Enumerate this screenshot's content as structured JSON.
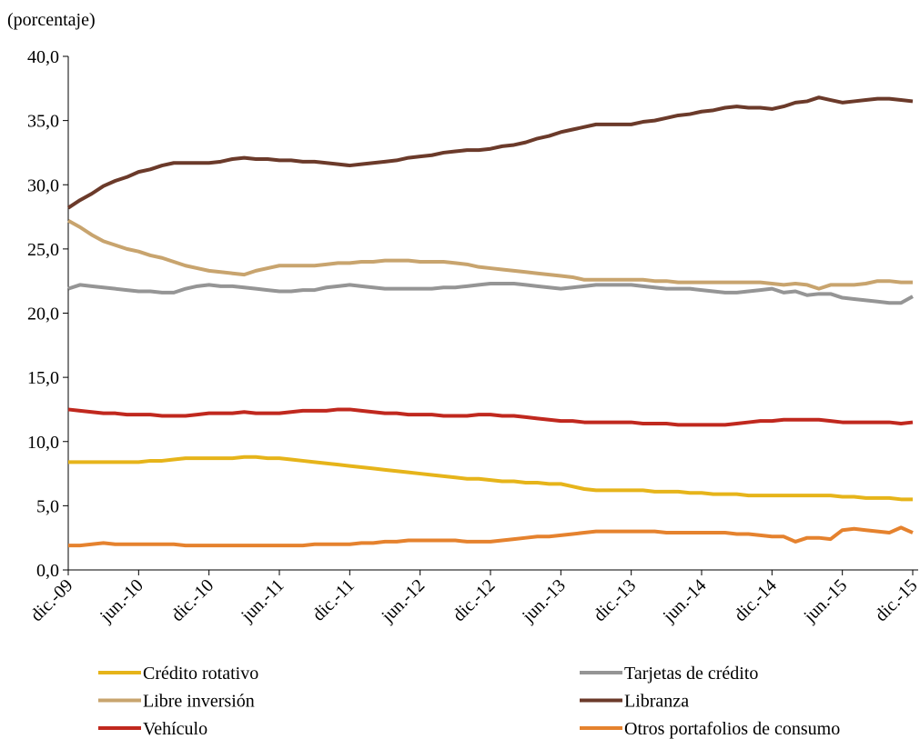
{
  "chart_data": {
    "type": "line",
    "y_label": "(porcentaje)",
    "categories": [
      "dic.-09",
      null,
      null,
      null,
      null,
      null,
      "jun.-10",
      null,
      null,
      null,
      null,
      null,
      "dic.-10",
      null,
      null,
      null,
      null,
      null,
      "jun.-11",
      null,
      null,
      null,
      null,
      null,
      "dic.-11",
      null,
      null,
      null,
      null,
      null,
      "jun.-12",
      null,
      null,
      null,
      null,
      null,
      "dic.-12",
      null,
      null,
      null,
      null,
      null,
      "jun.-13",
      null,
      null,
      null,
      null,
      null,
      "dic.-13",
      null,
      null,
      null,
      null,
      null,
      "jun.-14",
      null,
      null,
      null,
      null,
      null,
      "dic.-14",
      null,
      null,
      null,
      null,
      null,
      "jun.-15",
      null,
      null,
      null,
      null,
      null,
      "dic.-15"
    ],
    "ylim": [
      0,
      40
    ],
    "yticks": [
      {
        "value": 0,
        "label": "0,0"
      },
      {
        "value": 5,
        "label": "5,0"
      },
      {
        "value": 10,
        "label": "10,0"
      },
      {
        "value": 15,
        "label": "15,0"
      },
      {
        "value": 20,
        "label": "20,0"
      },
      {
        "value": 25,
        "label": "25,0"
      },
      {
        "value": 30,
        "label": "30,0"
      },
      {
        "value": 35,
        "label": "35,0"
      },
      {
        "value": 40,
        "label": "40,0"
      }
    ],
    "series": [
      {
        "name": "Crédito rotativo",
        "color": "#e6b41a",
        "values": [
          8.4,
          8.4,
          8.4,
          8.4,
          8.4,
          8.4,
          8.4,
          8.5,
          8.5,
          8.6,
          8.7,
          8.7,
          8.7,
          8.7,
          8.7,
          8.8,
          8.8,
          8.7,
          8.7,
          8.6,
          8.5,
          8.4,
          8.3,
          8.2,
          8.1,
          8.0,
          7.9,
          7.8,
          7.7,
          7.6,
          7.5,
          7.4,
          7.3,
          7.2,
          7.1,
          7.1,
          7.0,
          6.9,
          6.9,
          6.8,
          6.8,
          6.7,
          6.7,
          6.5,
          6.3,
          6.2,
          6.2,
          6.2,
          6.2,
          6.2,
          6.1,
          6.1,
          6.1,
          6.0,
          6.0,
          5.9,
          5.9,
          5.9,
          5.8,
          5.8,
          5.8,
          5.8,
          5.8,
          5.8,
          5.8,
          5.8,
          5.7,
          5.7,
          5.6,
          5.6,
          5.6,
          5.5,
          5.5
        ]
      },
      {
        "name": "Tarjetas de crédito",
        "color": "#959595",
        "values": [
          21.9,
          22.2,
          22.1,
          22.0,
          21.9,
          21.8,
          21.7,
          21.7,
          21.6,
          21.6,
          21.9,
          22.1,
          22.2,
          22.1,
          22.1,
          22.0,
          21.9,
          21.8,
          21.7,
          21.7,
          21.8,
          21.8,
          22.0,
          22.1,
          22.2,
          22.1,
          22.0,
          21.9,
          21.9,
          21.9,
          21.9,
          21.9,
          22.0,
          22.0,
          22.1,
          22.2,
          22.3,
          22.3,
          22.3,
          22.2,
          22.1,
          22.0,
          21.9,
          22.0,
          22.1,
          22.2,
          22.2,
          22.2,
          22.2,
          22.1,
          22.0,
          21.9,
          21.9,
          21.9,
          21.8,
          21.7,
          21.6,
          21.6,
          21.7,
          21.8,
          21.9,
          21.6,
          21.7,
          21.4,
          21.5,
          21.5,
          21.2,
          21.1,
          21.0,
          20.9,
          20.8,
          20.8,
          21.3
        ]
      },
      {
        "name": "Libre inversión",
        "color": "#c8a46e",
        "values": [
          27.2,
          26.7,
          26.1,
          25.6,
          25.3,
          25.0,
          24.8,
          24.5,
          24.3,
          24.0,
          23.7,
          23.5,
          23.3,
          23.2,
          23.1,
          23.0,
          23.3,
          23.5,
          23.7,
          23.7,
          23.7,
          23.7,
          23.8,
          23.9,
          23.9,
          24.0,
          24.0,
          24.1,
          24.1,
          24.1,
          24.0,
          24.0,
          24.0,
          23.9,
          23.8,
          23.6,
          23.5,
          23.4,
          23.3,
          23.2,
          23.1,
          23.0,
          22.9,
          22.8,
          22.6,
          22.6,
          22.6,
          22.6,
          22.6,
          22.6,
          22.5,
          22.5,
          22.4,
          22.4,
          22.4,
          22.4,
          22.4,
          22.4,
          22.4,
          22.4,
          22.3,
          22.2,
          22.3,
          22.2,
          21.9,
          22.2,
          22.2,
          22.2,
          22.3,
          22.5,
          22.5,
          22.4,
          22.4
        ]
      },
      {
        "name": "Libranza",
        "color": "#6b3a2a",
        "values": [
          28.2,
          28.8,
          29.3,
          29.9,
          30.3,
          30.6,
          31.0,
          31.2,
          31.5,
          31.7,
          31.7,
          31.7,
          31.7,
          31.8,
          32.0,
          32.1,
          32.0,
          32.0,
          31.9,
          31.9,
          31.8,
          31.8,
          31.7,
          31.6,
          31.5,
          31.6,
          31.7,
          31.8,
          31.9,
          32.1,
          32.2,
          32.3,
          32.5,
          32.6,
          32.7,
          32.7,
          32.8,
          33.0,
          33.1,
          33.3,
          33.6,
          33.8,
          34.1,
          34.3,
          34.5,
          34.7,
          34.7,
          34.7,
          34.7,
          34.9,
          35.0,
          35.2,
          35.4,
          35.5,
          35.7,
          35.8,
          36.0,
          36.1,
          36.0,
          36.0,
          35.9,
          36.1,
          36.4,
          36.5,
          36.8,
          36.6,
          36.4,
          36.5,
          36.6,
          36.7,
          36.7,
          36.6,
          36.5
        ]
      },
      {
        "name": "Vehículo",
        "color": "#c0281e",
        "values": [
          12.5,
          12.4,
          12.3,
          12.2,
          12.2,
          12.1,
          12.1,
          12.1,
          12.0,
          12.0,
          12.0,
          12.1,
          12.2,
          12.2,
          12.2,
          12.3,
          12.2,
          12.2,
          12.2,
          12.3,
          12.4,
          12.4,
          12.4,
          12.5,
          12.5,
          12.4,
          12.3,
          12.2,
          12.2,
          12.1,
          12.1,
          12.1,
          12.0,
          12.0,
          12.0,
          12.1,
          12.1,
          12.0,
          12.0,
          11.9,
          11.8,
          11.7,
          11.6,
          11.6,
          11.5,
          11.5,
          11.5,
          11.5,
          11.5,
          11.4,
          11.4,
          11.4,
          11.3,
          11.3,
          11.3,
          11.3,
          11.3,
          11.4,
          11.5,
          11.6,
          11.6,
          11.7,
          11.7,
          11.7,
          11.7,
          11.6,
          11.5,
          11.5,
          11.5,
          11.5,
          11.5,
          11.4,
          11.5
        ]
      },
      {
        "name": "Otros portafolios de consumo",
        "color": "#e5822e",
        "values": [
          1.9,
          1.9,
          2.0,
          2.1,
          2.0,
          2.0,
          2.0,
          2.0,
          2.0,
          2.0,
          1.9,
          1.9,
          1.9,
          1.9,
          1.9,
          1.9,
          1.9,
          1.9,
          1.9,
          1.9,
          1.9,
          2.0,
          2.0,
          2.0,
          2.0,
          2.1,
          2.1,
          2.2,
          2.2,
          2.3,
          2.3,
          2.3,
          2.3,
          2.3,
          2.2,
          2.2,
          2.2,
          2.3,
          2.4,
          2.5,
          2.6,
          2.6,
          2.7,
          2.8,
          2.9,
          3.0,
          3.0,
          3.0,
          3.0,
          3.0,
          3.0,
          2.9,
          2.9,
          2.9,
          2.9,
          2.9,
          2.9,
          2.8,
          2.8,
          2.7,
          2.6,
          2.6,
          2.2,
          2.5,
          2.5,
          2.4,
          3.1,
          3.2,
          3.1,
          3.0,
          2.9,
          3.3,
          2.9
        ]
      }
    ]
  }
}
